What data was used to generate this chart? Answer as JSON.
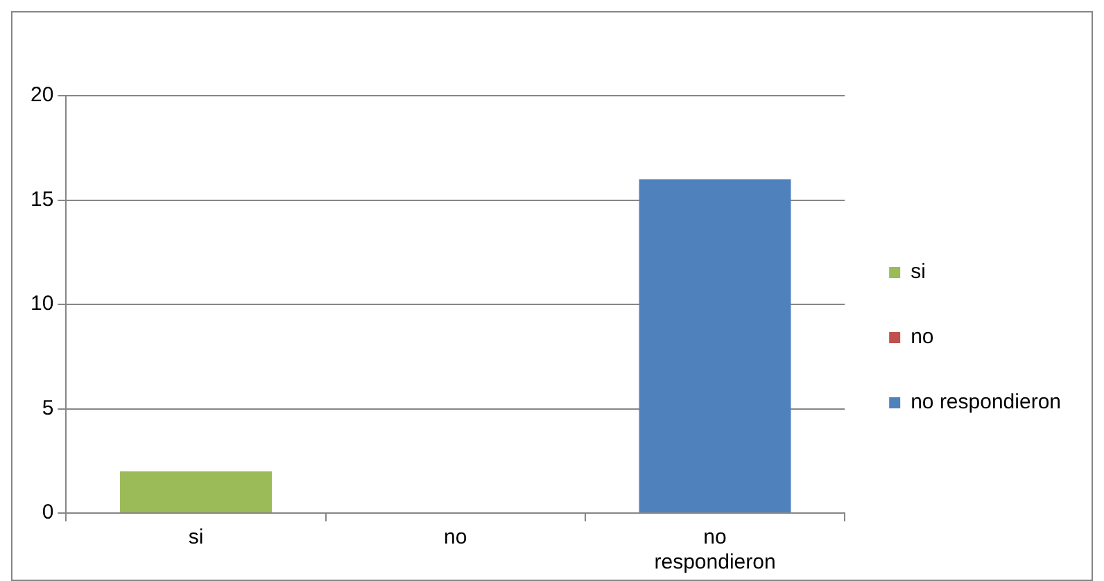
{
  "chart_data": {
    "type": "bar",
    "categories": [
      "si",
      "no",
      "no respondieron"
    ],
    "series": [
      {
        "name": "si",
        "color": "#9bbb59",
        "values": [
          2,
          null,
          null
        ]
      },
      {
        "name": "no",
        "color": "#c0504d",
        "values": [
          null,
          0,
          null
        ]
      },
      {
        "name": "no respondieron",
        "color": "#4f81bd",
        "values": [
          null,
          null,
          16
        ]
      }
    ],
    "ylim": [
      0,
      20
    ],
    "yticks": [
      0,
      5,
      10,
      15,
      20
    ],
    "grid": "y",
    "legend": "right"
  }
}
